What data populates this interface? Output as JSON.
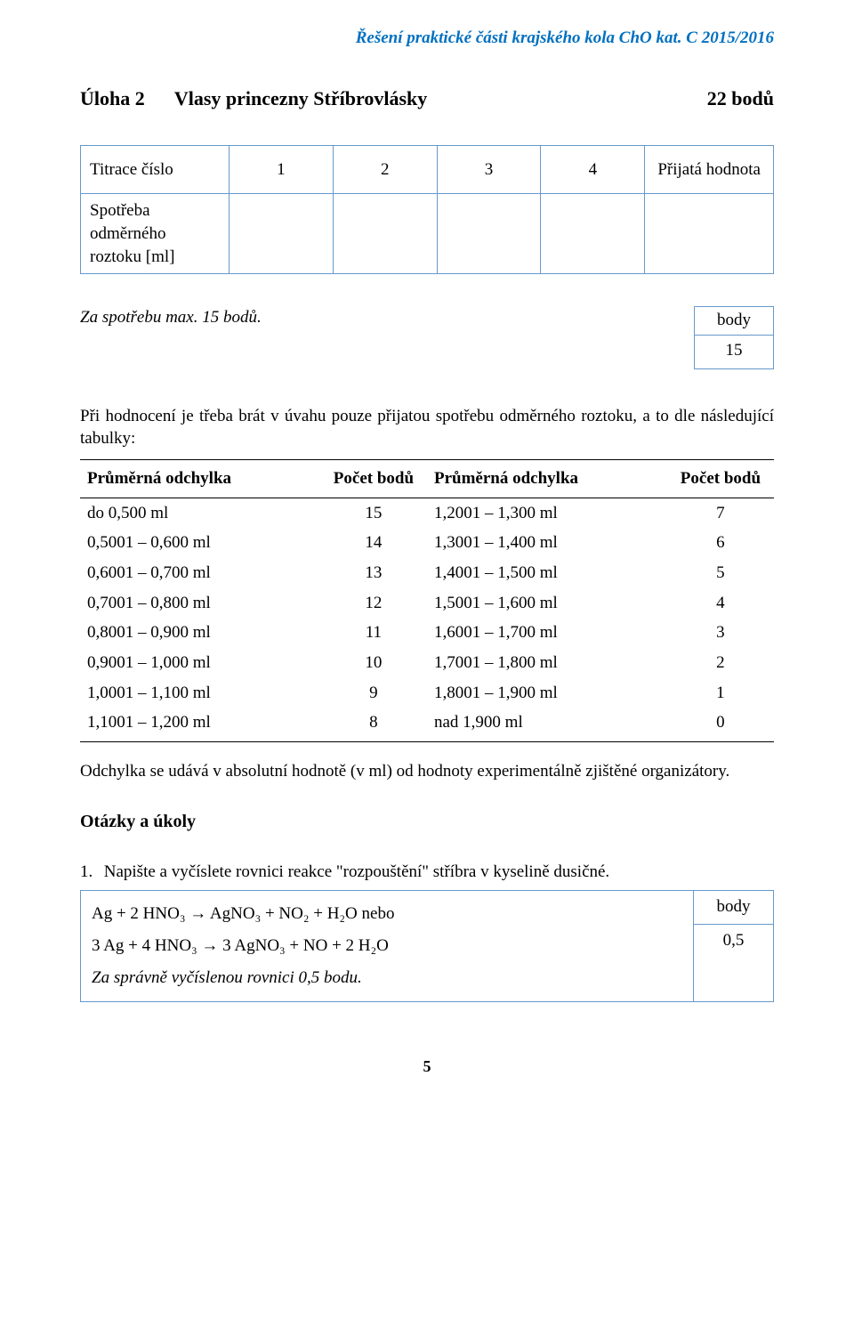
{
  "doc_header": "Řešení praktické části krajského kola ChO kat. C 2015/2016",
  "task": {
    "label": "Úloha 2",
    "title": "Vlasy princezny Stříbrovlásky",
    "points": "22 bodů"
  },
  "titration": {
    "row_label_1": "Titrace číslo",
    "row_label_2": "Spotřeba odměrného roztoku [ml]",
    "columns": [
      "1",
      "2",
      "3",
      "4"
    ],
    "accepted_label": "Přijatá hodnota"
  },
  "consumption": {
    "text": "Za spotřebu max. 15 bodů.",
    "points_label": "body",
    "points_value": "15"
  },
  "intro_para": "Při hodnocení je třeba brát v úvahu pouze přijatou spotřebu odměrného roztoku, a to dle následující tabulky:",
  "deviation_table": {
    "headers": [
      "Průměrná odchylka",
      "Počet bodů",
      "Průměrná odchylka",
      "Počet bodů"
    ],
    "rows": [
      [
        "do 0,500 ml",
        "15",
        "1,2001 – 1,300 ml",
        "7"
      ],
      [
        "0,5001 – 0,600 ml",
        "14",
        "1,3001 – 1,400 ml",
        "6"
      ],
      [
        "0,6001 – 0,700 ml",
        "13",
        "1,4001 – 1,500 ml",
        "5"
      ],
      [
        "0,7001 – 0,800 ml",
        "12",
        "1,5001 – 1,600 ml",
        "4"
      ],
      [
        "0,8001 – 0,900 ml",
        "11",
        "1,6001 – 1,700 ml",
        "3"
      ],
      [
        "0,9001 – 1,000 ml",
        "10",
        "1,7001 – 1,800 ml",
        "2"
      ],
      [
        "1,0001 – 1,100 ml",
        "9",
        "1,8001 – 1,900 ml",
        "1"
      ],
      [
        "1,1001 – 1,200 ml",
        "8",
        "nad 1,900 ml",
        "0"
      ]
    ]
  },
  "deviation_note": "Odchylka se udává v absolutní hodnotě (v ml) od hodnoty experimentálně zjištěné organizátory.",
  "qa_title": "Otázky a úkoly",
  "question1": {
    "num": "1.",
    "text": "Napište a vyčíslete rovnici reakce \"rozpouštění\" stříbra v kyselině dusičné."
  },
  "answer1": {
    "eq_line1": "Ag  +  2 HNO₃   →   AgNO₃   +   NO₂   +   H₂O  nebo",
    "eq_line2": "3 Ag  +  4 HNO₃   →   3 AgNO₃   +   NO   +   2 H₂O",
    "correct_line": "Za správně vyčíslenou rovnici 0,5 bodu.",
    "points_label": "body",
    "points_value": "0,5"
  },
  "page_number": "5"
}
